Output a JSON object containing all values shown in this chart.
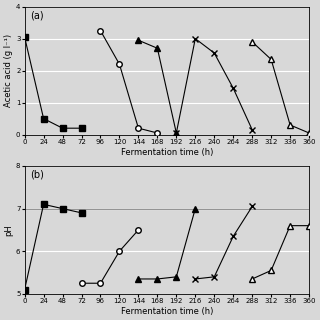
{
  "panel_a": {
    "ylabel": "Acetic acid (g l⁻¹)",
    "xlabel": "Fermentation time (h)",
    "ylim": [
      0,
      4
    ],
    "xlim": [
      0,
      360
    ],
    "yticks": [
      0,
      1,
      2,
      3,
      4
    ],
    "xticks": [
      0,
      24,
      48,
      72,
      96,
      120,
      144,
      168,
      192,
      216,
      240,
      264,
      288,
      312,
      336,
      360
    ],
    "series": [
      {
        "x": [
          0,
          24,
          48,
          72
        ],
        "y": [
          3.05,
          0.5,
          0.2,
          0.2
        ],
        "marker": "s",
        "filled": true,
        "color": "black"
      },
      {
        "x": [
          96,
          120,
          144,
          168
        ],
        "y": [
          3.25,
          2.2,
          0.2,
          0.05
        ],
        "marker": "o",
        "filled": false,
        "color": "black"
      },
      {
        "x": [
          144,
          168,
          192
        ],
        "y": [
          2.95,
          2.7,
          0.05
        ],
        "marker": "^",
        "filled": true,
        "color": "black"
      },
      {
        "x": [
          192,
          216,
          240,
          264,
          288
        ],
        "y": [
          0.05,
          3.0,
          2.55,
          1.45,
          0.15
        ],
        "marker": "x",
        "filled": true,
        "color": "black"
      },
      {
        "x": [
          288,
          312,
          336,
          360
        ],
        "y": [
          2.9,
          2.35,
          0.3,
          0.05
        ],
        "marker": "^",
        "filled": false,
        "color": "black"
      }
    ],
    "label": "(a)"
  },
  "panel_b": {
    "ylabel": "pH",
    "xlabel": "Fermentation time (h)",
    "ylim": [
      5,
      8
    ],
    "xlim": [
      0,
      360
    ],
    "yticks": [
      5,
      6,
      7,
      8
    ],
    "xticks": [
      0,
      24,
      48,
      72,
      96,
      120,
      144,
      168,
      192,
      216,
      240,
      264,
      288,
      312,
      336,
      360
    ],
    "series": [
      {
        "x": [
          0,
          24,
          48,
          72
        ],
        "y": [
          5.1,
          7.1,
          7.0,
          6.9
        ],
        "marker": "s",
        "filled": true,
        "color": "black"
      },
      {
        "x": [
          72,
          96,
          120,
          144
        ],
        "y": [
          5.25,
          5.25,
          6.0,
          6.5
        ],
        "marker": "o",
        "filled": false,
        "color": "black"
      },
      {
        "x": [
          144,
          168,
          192,
          216
        ],
        "y": [
          5.35,
          5.35,
          5.4,
          7.0
        ],
        "marker": "^",
        "filled": true,
        "color": "black"
      },
      {
        "x": [
          216,
          240,
          264,
          288
        ],
        "y": [
          5.35,
          5.4,
          6.35,
          7.05
        ],
        "marker": "x",
        "filled": true,
        "color": "black"
      },
      {
        "x": [
          288,
          312,
          336,
          360
        ],
        "y": [
          5.35,
          5.55,
          6.6,
          6.6
        ],
        "marker": "^",
        "filled": false,
        "color": "black"
      }
    ],
    "label": "(b)",
    "hline": 7.0
  },
  "background_color": "#d8d8d8",
  "plot_bg_color": "#d8d8d8",
  "grid_color": "white",
  "marker_size": 4,
  "linewidth": 0.8,
  "tick_labelsize": 5,
  "xlabel_fontsize": 6,
  "ylabel_fontsize": 6,
  "label_fontsize": 7
}
